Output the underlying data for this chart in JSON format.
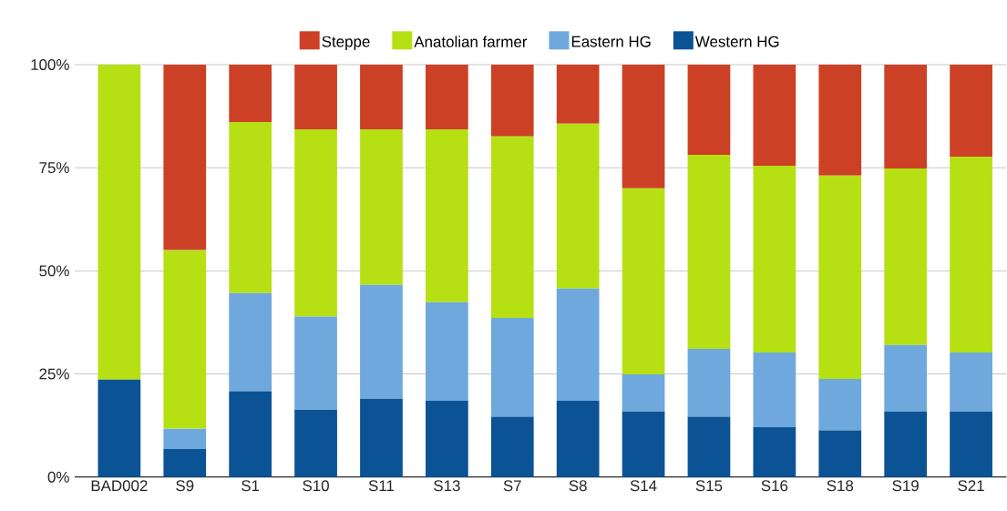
{
  "chart_data": {
    "type": "bar",
    "stacked": true,
    "categories": [
      "BAD002",
      "S9",
      "S1",
      "S10",
      "S11",
      "S13",
      "S7",
      "S8",
      "S14",
      "S15",
      "S16",
      "S18",
      "S19",
      "S21"
    ],
    "series": [
      {
        "name": "Western HG",
        "color": "#0b5394",
        "values": [
          23.6,
          6.8,
          20.8,
          16.3,
          19.0,
          18.5,
          14.6,
          18.5,
          15.9,
          14.6,
          12.1,
          11.3,
          15.9,
          15.9
        ]
      },
      {
        "name": "Eastern HG",
        "color": "#6fa8dc",
        "values": [
          0,
          4.9,
          23.8,
          22.6,
          27.6,
          23.9,
          24.0,
          27.2,
          9.0,
          16.5,
          18.1,
          12.5,
          16.1,
          14.3
        ]
      },
      {
        "name": "Anatolian farmer",
        "color": "#b7e014",
        "values": [
          76.4,
          43.3,
          41.5,
          45.4,
          37.7,
          41.9,
          44.0,
          40.0,
          45.1,
          47.0,
          45.3,
          49.3,
          42.8,
          47.5
        ]
      },
      {
        "name": "Steppe",
        "color": "#cc4125",
        "values": [
          0,
          45.0,
          13.9,
          15.7,
          15.7,
          15.7,
          17.4,
          14.3,
          30.0,
          21.9,
          24.5,
          26.9,
          25.2,
          22.3
        ]
      }
    ],
    "ylim": [
      0,
      100
    ],
    "yticks": [
      {
        "value": 0,
        "label": "0%"
      },
      {
        "value": 25,
        "label": "25%"
      },
      {
        "value": 50,
        "label": "50%"
      },
      {
        "value": 75,
        "label": "75%"
      },
      {
        "value": 100,
        "label": "100%"
      }
    ],
    "grid": "y",
    "legend": "top"
  }
}
